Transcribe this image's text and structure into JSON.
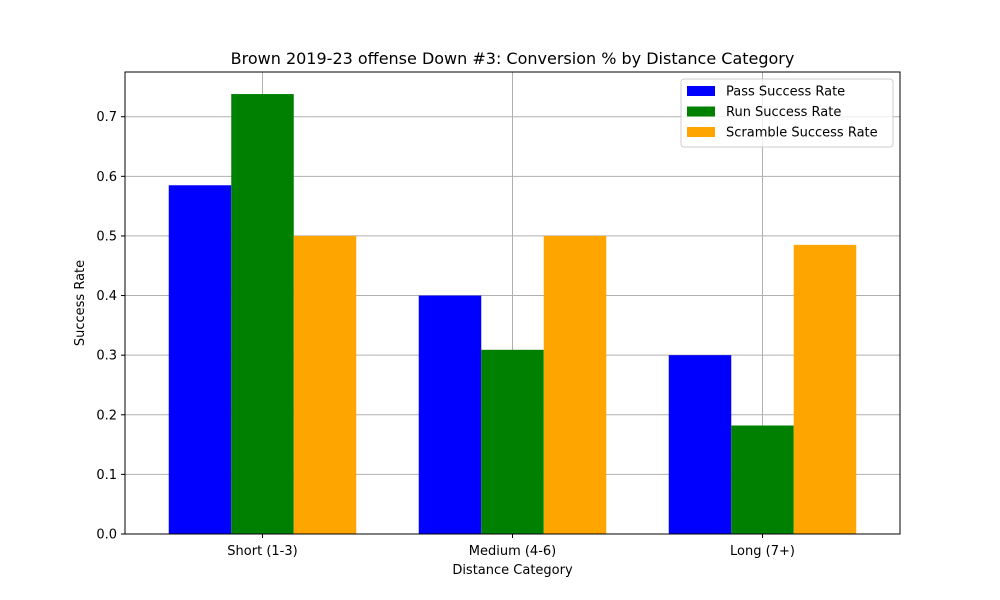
{
  "chart_data": {
    "type": "bar",
    "title": "Brown 2019-23 offense Down #3: Conversion % by Distance Category",
    "xlabel": "Distance Category",
    "ylabel": "Success Rate",
    "categories": [
      "Short (1-3)",
      "Medium (4-6)",
      "Long (7+)"
    ],
    "series": [
      {
        "name": "Pass Success Rate",
        "color": "#0000ff",
        "values": [
          0.585,
          0.4,
          0.3
        ]
      },
      {
        "name": "Run Success Rate",
        "color": "#008000",
        "values": [
          0.738,
          0.309,
          0.182
        ]
      },
      {
        "name": "Scramble Success Rate",
        "color": "#ffa500",
        "values": [
          0.5,
          0.5,
          0.485
        ]
      }
    ],
    "ylim": [
      0,
      0.775
    ],
    "yticks": [
      "0.0",
      "0.1",
      "0.2",
      "0.3",
      "0.4",
      "0.5",
      "0.6",
      "0.7"
    ],
    "grid": true,
    "legend_position": "top-right"
  }
}
